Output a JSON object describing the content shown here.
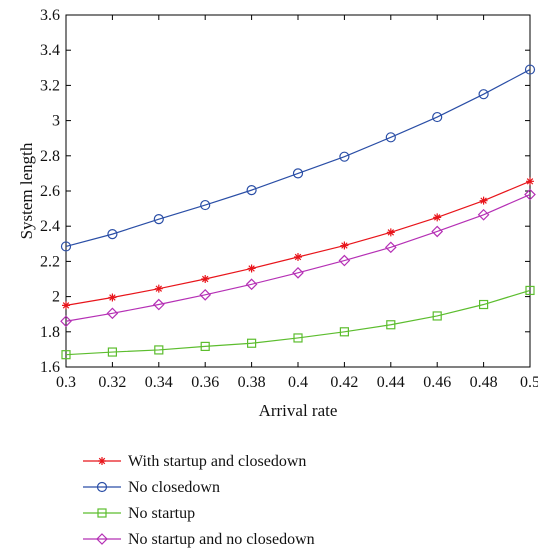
{
  "chart_data": {
    "type": "line",
    "title": "",
    "xlabel": "Arrival rate",
    "ylabel": "System length",
    "xlim": [
      0.3,
      0.5
    ],
    "ylim": [
      1.6,
      3.6
    ],
    "grid": false,
    "legend_position": "bottom",
    "x": [
      0.3,
      0.32,
      0.34,
      0.36,
      0.38,
      0.4,
      0.42,
      0.44,
      0.46,
      0.48,
      0.5
    ],
    "x_tick_labels": [
      "0.3",
      "0.32",
      "0.34",
      "0.36",
      "0.38",
      "0.4",
      "0.42",
      "0.44",
      "0.46",
      "0.48",
      "0.5"
    ],
    "y_ticks": [
      1.6,
      1.8,
      2.0,
      2.2,
      2.4,
      2.6,
      2.8,
      3.0,
      3.2,
      3.4,
      3.6
    ],
    "y_tick_labels": [
      "1.6",
      "1.8",
      "2",
      "2.2",
      "2.4",
      "2.6",
      "2.8",
      "3",
      "3.2",
      "3.4",
      "3.6"
    ],
    "series": [
      {
        "name": "With startup and closedown",
        "color": "#e8151b",
        "marker": "star",
        "values": [
          1.95,
          1.995,
          2.045,
          2.1,
          2.16,
          2.225,
          2.29,
          2.365,
          2.45,
          2.545,
          2.655
        ]
      },
      {
        "name": "No closedown",
        "color": "#2a4ea6",
        "marker": "circle",
        "values": [
          2.285,
          2.355,
          2.44,
          2.52,
          2.605,
          2.7,
          2.795,
          2.905,
          3.02,
          3.15,
          3.29
        ]
      },
      {
        "name": "No startup",
        "color": "#5cbd2e",
        "marker": "square",
        "values": [
          1.67,
          1.685,
          1.697,
          1.717,
          1.735,
          1.765,
          1.8,
          1.84,
          1.89,
          1.955,
          2.035
        ]
      },
      {
        "name": "No startup and no closedown",
        "color": "#b530b5",
        "marker": "diamond",
        "values": [
          1.86,
          1.905,
          1.955,
          2.01,
          2.07,
          2.135,
          2.205,
          2.28,
          2.37,
          2.465,
          2.58
        ]
      }
    ]
  }
}
